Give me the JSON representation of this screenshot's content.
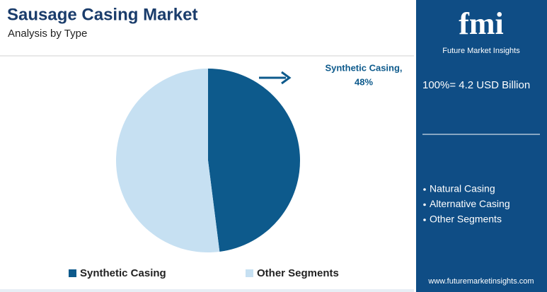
{
  "chart_data": {
    "type": "pie",
    "title": "Sausage Casing Market",
    "subtitle": "Analysis by Type",
    "categories": [
      "Synthetic Casing",
      "Other Segments"
    ],
    "values": [
      48,
      52
    ],
    "value_labels": [
      "48%",
      null
    ],
    "colors": [
      "#0d5a8c",
      "#c6e0f2"
    ],
    "annotation": "Synthetic Casing,"
  },
  "sidebar": {
    "logo": "fmi",
    "logo_caption": "Future Market Insights",
    "total": "100%= 4.2 USD Billion",
    "segments": [
      "Natural Casing",
      "Alternative Casing",
      "Other Segments"
    ],
    "website": "www.futuremarketinsights.com"
  }
}
